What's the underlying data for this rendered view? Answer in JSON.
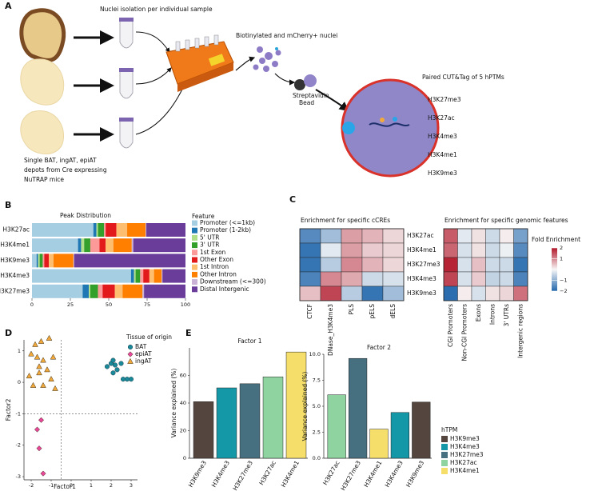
{
  "panel_labels": [
    "A",
    "B",
    "C",
    "D",
    "E"
  ],
  "diagram": {
    "step1": "Nuclei isolation per individual sample",
    "step2": "Biotinylated and mCherry+ nuclei",
    "bead": [
      "Streptavidin",
      "Bead"
    ],
    "step3": "Paired CUT&Tag of 5 hPTMs",
    "hptms": [
      "H3K27me3",
      "H3K27ac",
      "H3K4me3",
      "H3K4me1",
      "H3K9me3"
    ],
    "source": [
      "Single BAT, ingAT, epiAT",
      "depots from Cre expressing",
      "NuTRAP mice"
    ]
  },
  "chart_data": [
    {
      "type": "stacked_bar_h",
      "title": "Peak Distribution",
      "categories": [
        "H3K27ac",
        "H3K4me1",
        "H3K9me3",
        "H3K4me3",
        "H3K27me3"
      ],
      "legend_title": "Feature",
      "series": [
        {
          "name": "Promoter (<=1kb)",
          "color": "#a6cee3",
          "values": [
            40,
            30,
            3,
            64.5,
            33
          ]
        },
        {
          "name": "Promoter (1-2kb)",
          "color": "#1f78b4",
          "values": [
            2,
            2,
            1,
            2,
            4
          ]
        },
        {
          "name": "5' UTR",
          "color": "#b2df8a",
          "values": [
            1,
            2,
            1,
            1,
            1
          ]
        },
        {
          "name": "3' UTR",
          "color": "#33a02c",
          "values": [
            4,
            4,
            2,
            3,
            5
          ]
        },
        {
          "name": "1st Exon",
          "color": "#fb9a99",
          "values": [
            1,
            6,
            1,
            2,
            3
          ]
        },
        {
          "name": "Other Exon",
          "color": "#e31a1c",
          "values": [
            7,
            4,
            3,
            4,
            8
          ]
        },
        {
          "name": "1st Intron",
          "color": "#fdbf6f",
          "values": [
            7,
            5,
            3,
            3,
            5
          ]
        },
        {
          "name": "Other Intron",
          "color": "#ff7f00",
          "values": [
            12,
            12,
            13,
            5,
            13
          ]
        },
        {
          "name": "Downstream (<=300)",
          "color": "#cab2d6",
          "values": [
            0.5,
            1,
            0.5,
            0.5,
            1
          ]
        },
        {
          "name": "Distal Intergenic",
          "color": "#6a3d9a",
          "values": [
            25.5,
            34,
            72.5,
            15,
            27
          ]
        }
      ],
      "xlim": [
        0,
        100
      ],
      "xticks": [
        0,
        25,
        50,
        75,
        100
      ]
    },
    {
      "type": "heatmap",
      "title": "Enrichment for specific cCREs",
      "rows": [
        "H3K27ac",
        "H3K4me1",
        "H3K27me3",
        "H3K4me3",
        "H3K9me3"
      ],
      "columns": [
        "CTCF",
        "DNase_H3K4me3",
        "PLS",
        "pELS",
        "dELS"
      ],
      "values": [
        [
          -1.5,
          -0.8,
          0.8,
          0.6,
          0.3
        ],
        [
          -1.8,
          -0.2,
          0.8,
          0.4,
          0.3
        ],
        [
          -1.8,
          -0.6,
          1.0,
          0.6,
          0.3
        ],
        [
          -1.6,
          1.0,
          0.7,
          -0.4,
          -0.3
        ],
        [
          0.5,
          1.6,
          -0.6,
          -1.8,
          -0.8
        ]
      ],
      "colorscale": [
        "#2166ac",
        "#f7f7f7",
        "#b2182b"
      ],
      "zlim": [
        -2,
        2
      ]
    },
    {
      "type": "heatmap",
      "title": "Enrichment for specific genomic features",
      "columns": [
        "CGI Promoters",
        "Non-CGI Promoters",
        "Exons",
        "Introns",
        "3' UTRs",
        "Intergenic regions"
      ],
      "values": [
        [
          1.4,
          -0.2,
          0.2,
          -0.4,
          0.1,
          -1.2
        ],
        [
          1.3,
          -0.3,
          0.2,
          -0.4,
          -0.1,
          -1.5
        ],
        [
          1.9,
          -0.3,
          0.5,
          -0.4,
          -0.4,
          -1.8
        ],
        [
          1.6,
          -0.3,
          0.4,
          -0.5,
          -0.4,
          -1.6
        ],
        [
          -1.9,
          0.1,
          -0.3,
          0.2,
          0.3,
          1.2
        ]
      ],
      "colorscale": [
        "#2166ac",
        "#f7f7f7",
        "#b2182b"
      ],
      "zlim": [
        -2,
        2
      ],
      "colorbar_title": "Fold Enrichment",
      "zticks": [
        2,
        1,
        {
          "value": -1,
          "label": "−1"
        },
        {
          "value": -2,
          "label": "−2"
        }
      ]
    },
    {
      "type": "scatter",
      "xlabel": "Factor1",
      "ylabel": "Factor2",
      "xlim": [
        -2.36,
        3.32
      ],
      "ylim": [
        -3.1,
        1.35
      ],
      "xticks": [
        -2,
        -1,
        0,
        1,
        2,
        3
      ],
      "yticks": [
        1,
        0,
        -1,
        -2,
        -3
      ],
      "hlines": [
        -1
      ],
      "vlines": [
        -0.5
      ],
      "legend_title": "Tissue of origin",
      "series": [
        {
          "name": "BAT",
          "color": "#1a8a9a",
          "marker": "circle",
          "x": [
            1.8,
            2.0,
            2.1,
            2.2,
            2.3,
            2.1,
            2.6,
            2.8,
            3.0,
            2.5
          ],
          "y": [
            0.5,
            0.6,
            0.7,
            0.55,
            0.4,
            0.3,
            0.1,
            0.1,
            0.1,
            0.6
          ]
        },
        {
          "name": "epiAT",
          "color": "#e8469b",
          "marker": "diamond",
          "x": [
            -1.5,
            -1.7,
            -1.6,
            -1.4
          ],
          "y": [
            -1.2,
            -1.5,
            -2.1,
            -2.9
          ]
        },
        {
          "name": "ingAT",
          "color": "#f2a93b",
          "marker": "triangle",
          "x": [
            -1.8,
            -1.5,
            -1.1,
            -2.0,
            -1.7,
            -1.4,
            -0.9,
            -1.2,
            -1.6,
            -2.1,
            -1.9,
            -1.4,
            -0.8,
            -1.0,
            -1.6
          ],
          "y": [
            1.2,
            1.3,
            1.4,
            0.9,
            0.8,
            0.7,
            0.8,
            0.4,
            0.3,
            0.2,
            -0.1,
            -0.1,
            -0.2,
            0.1,
            0.5
          ]
        }
      ]
    },
    {
      "type": "bar",
      "title": "Factor 1",
      "ylabel": "Variance explained (%)",
      "categories": [
        "H3K9me3",
        "H3K4me3",
        "H3K27me3",
        "H3K27ac",
        "H3K4me1"
      ],
      "values": [
        41,
        51,
        54,
        59,
        77
      ],
      "colors": [
        "#54463f",
        "#1497a6",
        "#467080",
        "#8fd3a0",
        "#f5df6a"
      ],
      "ylim": [
        0,
        80
      ],
      "yticks": [
        0,
        20,
        40,
        60
      ]
    },
    {
      "type": "bar",
      "title": "Factor 2",
      "ylabel": "Variance explained (%)",
      "categories": [
        "H3K27ac",
        "H3K27me3",
        "H3K4me1",
        "H3K4me3",
        "H3K9me3"
      ],
      "values": [
        6.1,
        9.6,
        2.8,
        4.4,
        5.4
      ],
      "colors": [
        "#8fd3a0",
        "#467080",
        "#f5df6a",
        "#1497a6",
        "#54463f"
      ],
      "ylim": [
        0,
        10
      ],
      "yticks": [
        {
          "value": 0,
          "label": "0.0"
        },
        {
          "value": 2.5,
          "label": "2.5"
        },
        {
          "value": 5,
          "label": "5.0"
        },
        {
          "value": 7.5,
          "label": "7.5"
        },
        {
          "value": 10,
          "label": "10.0"
        }
      ],
      "legend_title": "hTPM",
      "legend": [
        {
          "name": "H3K9me3",
          "color": "#54463f"
        },
        {
          "name": "H3K4me3",
          "color": "#1497a6"
        },
        {
          "name": "H3K27me3",
          "color": "#467080"
        },
        {
          "name": "H3K27ac",
          "color": "#8fd3a0"
        },
        {
          "name": "H3K4me1",
          "color": "#f5df6a"
        }
      ]
    }
  ]
}
